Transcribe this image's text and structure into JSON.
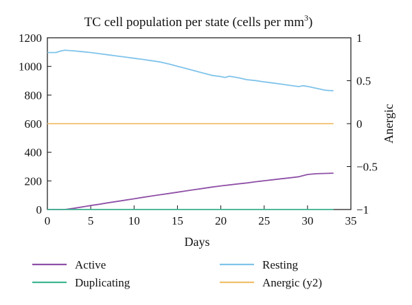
{
  "chart_data": {
    "type": "line",
    "title": "TC cell population per state (cells per mm",
    "title_superscript": "3",
    "title_suffix": ")",
    "xlabel": "Days",
    "ylabel": "",
    "y2label": "Anergic",
    "xlim": [
      0,
      35
    ],
    "ylim": [
      0,
      1200
    ],
    "y2lim": [
      -1,
      1
    ],
    "x_ticks": [
      "0",
      "5",
      "10",
      "15",
      "20",
      "25",
      "30",
      "35"
    ],
    "y_ticks": [
      "0",
      "200",
      "400",
      "600",
      "800",
      "1000",
      "1200"
    ],
    "y2_ticks": [
      "−1",
      "−0.5",
      "0",
      "0.5",
      "1"
    ],
    "grid": false,
    "legend_position": "bottom",
    "series": [
      {
        "name": "Active",
        "color": "#8e4fa6",
        "axis": "y",
        "x": [
          0,
          1,
          2,
          3,
          4,
          5,
          6,
          7,
          8,
          9,
          10,
          11,
          12,
          13,
          14,
          15,
          16,
          17,
          18,
          19,
          20,
          21,
          22,
          23,
          24,
          25,
          26,
          27,
          28,
          29,
          30,
          31,
          32,
          33
        ],
        "y": [
          0,
          0,
          0,
          8,
          18,
          28,
          37,
          47,
          56,
          66,
          75,
          85,
          94,
          103,
          112,
          121,
          130,
          139,
          148,
          157,
          165,
          172,
          179,
          186,
          194,
          201,
          208,
          215,
          222,
          229,
          245,
          250,
          252,
          254
        ]
      },
      {
        "name": "Duplicating",
        "color": "#3fb592",
        "axis": "y",
        "x": [
          0,
          33
        ],
        "y": [
          0,
          0
        ]
      },
      {
        "name": "Resting",
        "color": "#7fc3ea",
        "axis": "y",
        "x": [
          0,
          1,
          1.5,
          2,
          3,
          4,
          5,
          6,
          7,
          8,
          9,
          10,
          11,
          12,
          13,
          14,
          15,
          16,
          17,
          18,
          19,
          20,
          20.5,
          21,
          22,
          23,
          24,
          25,
          26,
          27,
          28,
          29,
          29.5,
          30,
          31,
          32,
          33
        ],
        "y": [
          1097,
          1097,
          1107,
          1113,
          1109,
          1103,
          1097,
          1089,
          1081,
          1073,
          1065,
          1057,
          1049,
          1040,
          1031,
          1017,
          1001,
          985,
          969,
          953,
          937,
          929,
          923,
          931,
          921,
          907,
          901,
          892,
          884,
          876,
          867,
          859,
          865,
          860,
          847,
          834,
          830
        ]
      },
      {
        "name": "Anergic (y2)",
        "color": "#f0be6b",
        "axis": "y2",
        "x": [
          0,
          33
        ],
        "y": [
          0,
          0
        ]
      }
    ]
  }
}
